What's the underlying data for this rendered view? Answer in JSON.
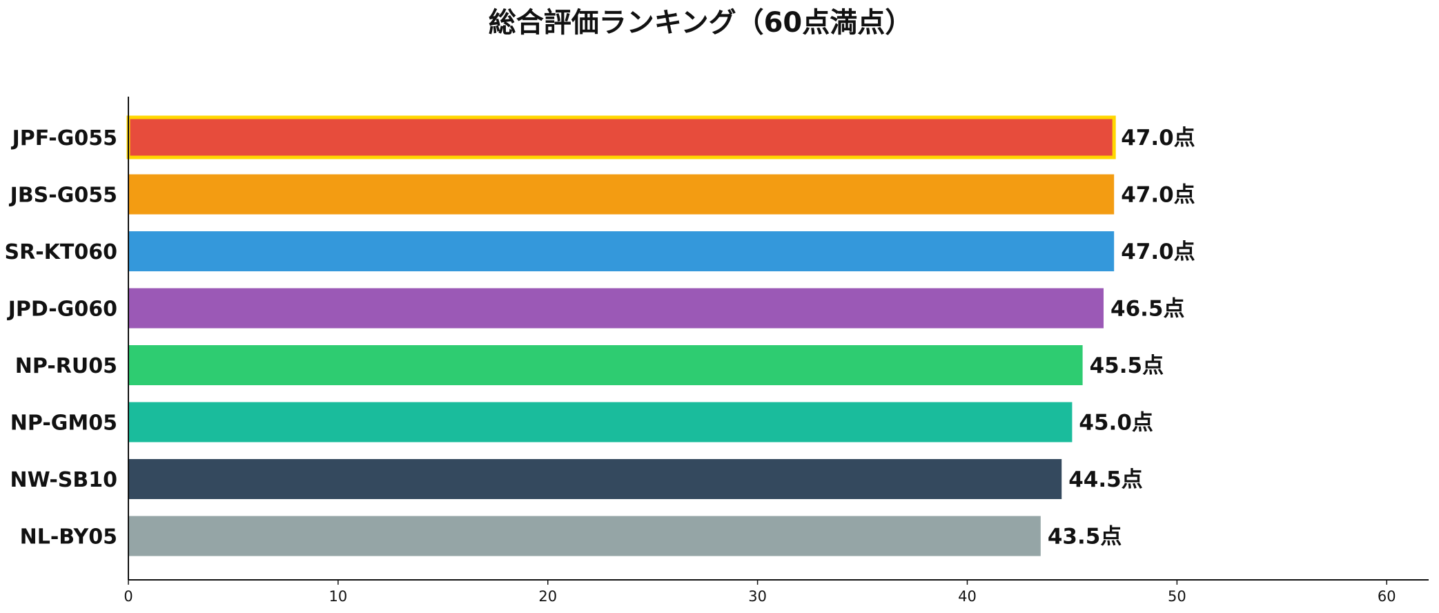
{
  "chart_data": {
    "type": "bar",
    "orientation": "horizontal",
    "title": "総合評価ランキング（60点満点）",
    "categories": [
      "JPF-G055",
      "JBS-G055",
      "SR-KT060",
      "JPD-G060",
      "NP-RU05",
      "NP-GM05",
      "NW-SB10",
      "NL-BY05"
    ],
    "values": [
      47.0,
      47.0,
      47.0,
      46.5,
      45.5,
      45.0,
      44.5,
      43.5
    ],
    "value_labels": [
      "47.0点",
      "47.0点",
      "47.0点",
      "46.5点",
      "45.5点",
      "45.0点",
      "44.5点",
      "43.5点"
    ],
    "colors": [
      "#E74C3C",
      "#F39C12",
      "#3498DB",
      "#9B59B6",
      "#2ECC71",
      "#1ABC9C",
      "#34495E",
      "#95A5A6"
    ],
    "highlight_index": 0,
    "highlight_color": "#FFD700",
    "xlim": [
      0,
      62
    ],
    "xticks": [
      0,
      10,
      20,
      30,
      40,
      50,
      60
    ],
    "grid": false,
    "xlabel": "",
    "ylabel": ""
  }
}
